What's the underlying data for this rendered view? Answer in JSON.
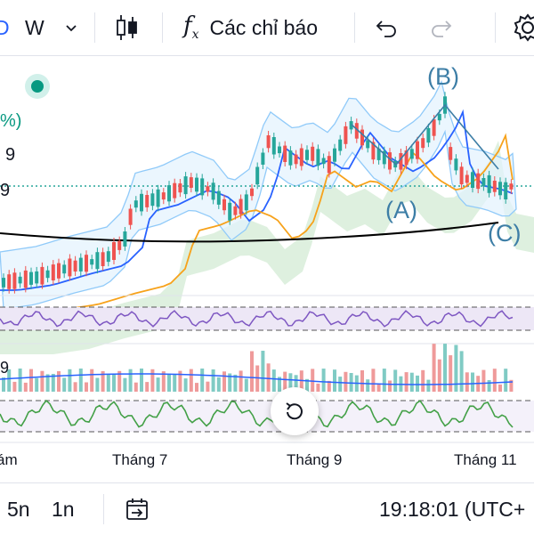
{
  "toolbar": {
    "interval": "W",
    "indicators_label": "Các chỉ báo",
    "chart_type_icon": "candles-icon",
    "indicators_icon": "fx-icon",
    "undo_icon": "undo-icon",
    "redo_icon": "redo-icon",
    "settings_icon": "gear-icon"
  },
  "chart": {
    "price_labels": [
      "%)",
      "9",
      "9"
    ],
    "wave_labels": [
      "(B)",
      "(A)",
      "(C)"
    ],
    "volume_label": "9",
    "x_labels": [
      "ám",
      "Tháng 7",
      "Tháng 9",
      "Tháng 11"
    ],
    "status_dot_color": "#089981",
    "colors": {
      "up": "#26a69a",
      "down": "#ef5350",
      "ma_fast": "#2962ff",
      "ma_mid": "#f7a21b",
      "ma_slow": "#000000",
      "wave": "#3d7ea6"
    }
  },
  "bottom": {
    "range_5n": "5n",
    "range_1n": "1n",
    "goto_icon": "calendar-arrow-icon",
    "time": "19:18:01 (UTC+"
  }
}
